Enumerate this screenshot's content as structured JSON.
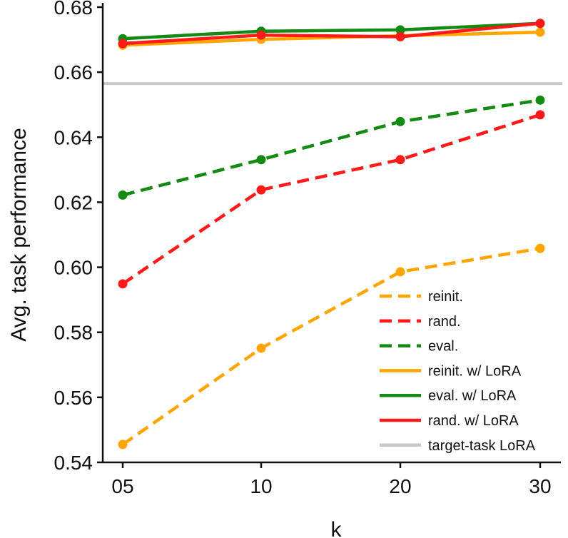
{
  "chart_data": {
    "type": "line",
    "title": "",
    "xlabel": "k",
    "ylabel": "Avg. task performance",
    "categories": [
      "05",
      "10",
      "20",
      "30"
    ],
    "ylim": [
      0.54,
      0.68
    ],
    "yticks": [
      "0.54",
      "0.56",
      "0.58",
      "0.60",
      "0.62",
      "0.64",
      "0.66",
      "0.68"
    ],
    "yticks_values": [
      0.54,
      0.56,
      0.58,
      0.6,
      0.62,
      0.64,
      0.66,
      0.68
    ],
    "grid": false,
    "legend_position": "lower-right",
    "series": [
      {
        "name": "reinit.",
        "style": "dashed",
        "color": "#ffa500",
        "values": [
          0.5455,
          0.5751,
          0.5986,
          0.6058
        ]
      },
      {
        "name": "rand.",
        "style": "dashed",
        "color": "#ff1a1a",
        "values": [
          0.5949,
          0.6238,
          0.6331,
          0.6469
        ]
      },
      {
        "name": "eval.",
        "style": "dashed",
        "color": "#138a13",
        "values": [
          0.6222,
          0.6331,
          0.6448,
          0.6514
        ]
      },
      {
        "name": "reinit. w/ LoRA",
        "style": "solid",
        "color": "#ffa500",
        "values": [
          0.6683,
          0.6701,
          0.6712,
          0.6723
        ]
      },
      {
        "name": "eval. w/ LoRA",
        "style": "solid",
        "color": "#138a13",
        "values": [
          0.6703,
          0.6726,
          0.673,
          0.675
        ]
      },
      {
        "name": "rand. w/ LoRA",
        "style": "solid",
        "color": "#ff1a1a",
        "values": [
          0.6688,
          0.6714,
          0.6709,
          0.675
        ]
      }
    ],
    "reference_lines": [
      {
        "name": "target-task LoRA",
        "color": "#c8c8c8",
        "value": 0.6565
      }
    ]
  }
}
